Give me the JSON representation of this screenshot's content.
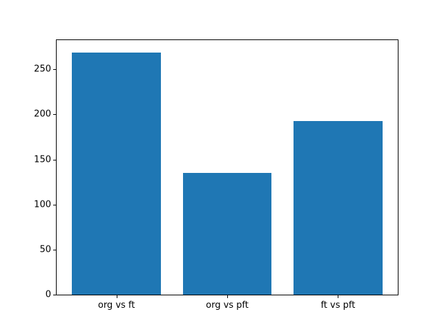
{
  "figure": {
    "background": "#ffffff"
  },
  "chart_data": {
    "type": "bar",
    "categories": [
      "org vs ft",
      "org vs pft",
      "ft vs pft"
    ],
    "values": [
      269,
      135,
      193
    ],
    "title": "",
    "xlabel": "",
    "ylabel": "",
    "ylim": [
      0,
      282.45
    ],
    "xlim": [
      -0.54,
      2.54
    ],
    "yticks": [
      0,
      50,
      100,
      150,
      200,
      250
    ],
    "bar_width": 0.8,
    "bar_color": "#1f77b4",
    "axis_color": "#000000",
    "text_color": "#000000",
    "grid": false,
    "legend": null
  }
}
